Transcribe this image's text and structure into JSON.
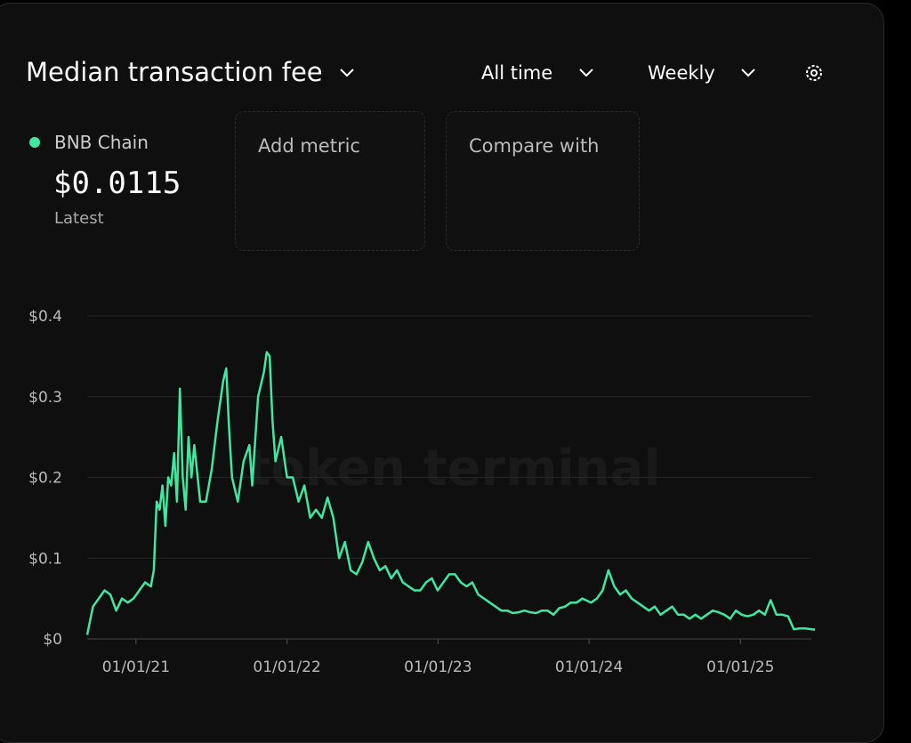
{
  "ui": {
    "range": "All time",
    "interval": "Weekly",
    "latest_value": "$0.0115",
    "latest_label": "Latest",
    "add_metric": "Add metric",
    "compare_with": "Compare with",
    "watermark": "token terminal"
  },
  "chart_data": {
    "type": "line",
    "title": "Median transaction fee",
    "xlim": [
      "2020-09-05",
      "2025-06-30"
    ],
    "xticks": [
      {
        "value": "2021-01-01",
        "label": "01/01/21"
      },
      {
        "value": "2022-01-01",
        "label": "01/01/22"
      },
      {
        "value": "2023-01-01",
        "label": "01/01/23"
      },
      {
        "value": "2024-01-01",
        "label": "01/01/24"
      },
      {
        "value": "2025-01-01",
        "label": "01/01/25"
      }
    ],
    "ylim": [
      0,
      0.4
    ],
    "yticks": [
      {
        "value": 0,
        "label": "$0"
      },
      {
        "value": 0.1,
        "label": "$0.1"
      },
      {
        "value": 0.2,
        "label": "$0.2"
      },
      {
        "value": 0.3,
        "label": "$0.3"
      },
      {
        "value": 0.4,
        "label": "$0.4"
      }
    ],
    "grid": true,
    "x": [
      "2020-09-05",
      "2020-09-19",
      "2020-10-03",
      "2020-10-17",
      "2020-10-31",
      "2020-11-14",
      "2020-11-28",
      "2020-12-12",
      "2020-12-26",
      "2021-01-09",
      "2021-01-23",
      "2021-02-06",
      "2021-02-13",
      "2021-02-20",
      "2021-02-27",
      "2021-03-06",
      "2021-03-13",
      "2021-03-20",
      "2021-03-27",
      "2021-04-03",
      "2021-04-10",
      "2021-04-17",
      "2021-04-24",
      "2021-05-01",
      "2021-05-08",
      "2021-05-15",
      "2021-05-22",
      "2021-06-05",
      "2021-06-19",
      "2021-07-03",
      "2021-07-17",
      "2021-07-31",
      "2021-08-07",
      "2021-08-14",
      "2021-08-21",
      "2021-09-04",
      "2021-09-18",
      "2021-10-02",
      "2021-10-09",
      "2021-10-23",
      "2021-11-06",
      "2021-11-13",
      "2021-11-20",
      "2021-11-27",
      "2021-12-04",
      "2021-12-18",
      "2022-01-01",
      "2022-01-15",
      "2022-01-29",
      "2022-02-12",
      "2022-02-26",
      "2022-03-12",
      "2022-03-26",
      "2022-04-09",
      "2022-04-23",
      "2022-05-07",
      "2022-05-21",
      "2022-06-04",
      "2022-06-18",
      "2022-07-02",
      "2022-07-16",
      "2022-07-30",
      "2022-08-13",
      "2022-08-27",
      "2022-09-10",
      "2022-09-24",
      "2022-10-08",
      "2022-10-22",
      "2022-11-05",
      "2022-11-19",
      "2022-12-03",
      "2022-12-17",
      "2022-12-31",
      "2023-01-14",
      "2023-01-28",
      "2023-02-11",
      "2023-02-25",
      "2023-03-11",
      "2023-03-25",
      "2023-04-08",
      "2023-04-22",
      "2023-05-06",
      "2023-05-20",
      "2023-06-03",
      "2023-06-17",
      "2023-07-01",
      "2023-07-15",
      "2023-07-29",
      "2023-08-12",
      "2023-08-26",
      "2023-09-09",
      "2023-09-23",
      "2023-10-07",
      "2023-10-21",
      "2023-11-04",
      "2023-11-18",
      "2023-12-02",
      "2023-12-16",
      "2024-01-06",
      "2024-01-20",
      "2024-02-03",
      "2024-02-17",
      "2024-03-02",
      "2024-03-16",
      "2024-03-30",
      "2024-04-13",
      "2024-04-27",
      "2024-05-11",
      "2024-05-25",
      "2024-06-08",
      "2024-06-22",
      "2024-07-06",
      "2024-07-20",
      "2024-08-03",
      "2024-08-17",
      "2024-08-31",
      "2024-09-14",
      "2024-09-28",
      "2024-10-12",
      "2024-10-26",
      "2024-11-09",
      "2024-11-23",
      "2024-12-07",
      "2024-12-21",
      "2025-01-04",
      "2025-01-18",
      "2025-02-01",
      "2025-02-15",
      "2025-03-01",
      "2025-03-15",
      "2025-03-29",
      "2025-04-12",
      "2025-04-26",
      "2025-05-10",
      "2025-05-24",
      "2025-06-07",
      "2025-06-21",
      "2025-06-30"
    ],
    "series": [
      {
        "name": "BNB Chain",
        "color": "#3ee8a0",
        "values": [
          0.005,
          0.04,
          0.05,
          0.06,
          0.055,
          0.035,
          0.05,
          0.045,
          0.05,
          0.06,
          0.07,
          0.065,
          0.085,
          0.17,
          0.16,
          0.19,
          0.14,
          0.2,
          0.19,
          0.23,
          0.17,
          0.31,
          0.2,
          0.16,
          0.25,
          0.2,
          0.24,
          0.17,
          0.17,
          0.21,
          0.27,
          0.32,
          0.335,
          0.26,
          0.2,
          0.17,
          0.22,
          0.24,
          0.19,
          0.3,
          0.33,
          0.355,
          0.35,
          0.27,
          0.22,
          0.25,
          0.2,
          0.2,
          0.17,
          0.19,
          0.15,
          0.16,
          0.15,
          0.175,
          0.15,
          0.1,
          0.12,
          0.085,
          0.08,
          0.095,
          0.12,
          0.1,
          0.085,
          0.09,
          0.075,
          0.085,
          0.07,
          0.065,
          0.06,
          0.06,
          0.07,
          0.075,
          0.06,
          0.07,
          0.08,
          0.08,
          0.07,
          0.065,
          0.07,
          0.055,
          0.05,
          0.045,
          0.04,
          0.035,
          0.035,
          0.032,
          0.033,
          0.035,
          0.033,
          0.032,
          0.035,
          0.035,
          0.03,
          0.038,
          0.04,
          0.045,
          0.045,
          0.05,
          0.045,
          0.05,
          0.06,
          0.085,
          0.065,
          0.055,
          0.06,
          0.05,
          0.045,
          0.04,
          0.035,
          0.04,
          0.03,
          0.035,
          0.04,
          0.03,
          0.03,
          0.025,
          0.03,
          0.025,
          0.03,
          0.035,
          0.033,
          0.03,
          0.025,
          0.035,
          0.03,
          0.028,
          0.03,
          0.035,
          0.03,
          0.048,
          0.03,
          0.03,
          0.028,
          0.012,
          0.013,
          0.013,
          0.012,
          0.0115
        ]
      }
    ]
  }
}
